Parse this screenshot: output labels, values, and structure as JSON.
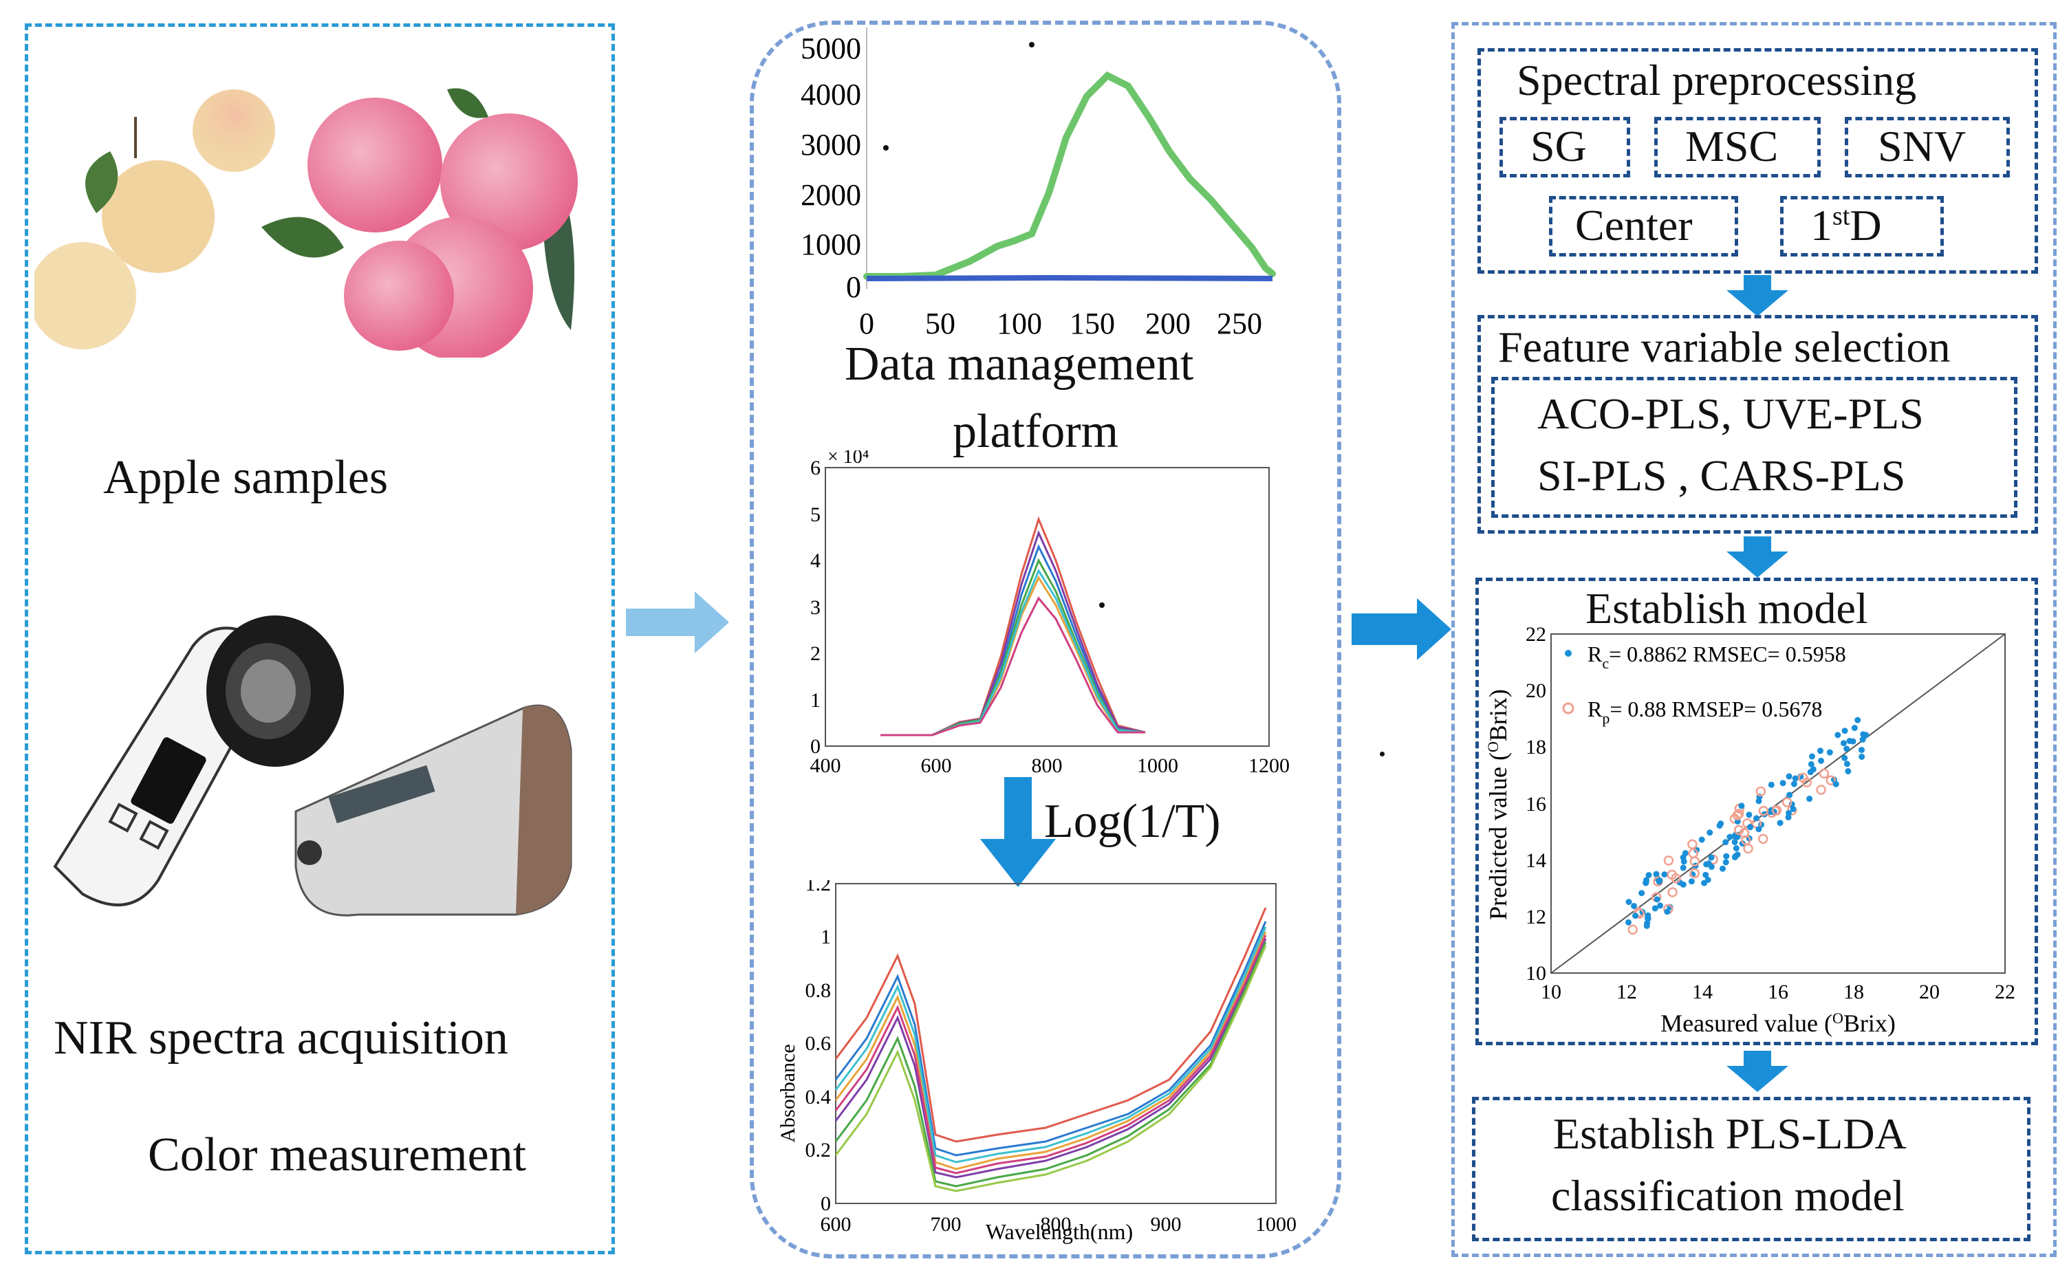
{
  "left": {
    "samples_label": "Apple samples",
    "nir_label": "NIR spectra acquisition",
    "color_label": "Color measurement"
  },
  "middle": {
    "platform_label_1": "Data management",
    "platform_label_2": "platform",
    "transform_label": "Log(1/T)",
    "chart1": {
      "type": "line",
      "x_ticks": [
        "0",
        "50",
        "100",
        "150",
        "200",
        "250"
      ],
      "y_ticks": [
        "0",
        "1000",
        "2000",
        "3000",
        "4000",
        "5000"
      ]
    },
    "chart2": {
      "type": "line",
      "exponent": "× 10⁴",
      "x_ticks": [
        "400",
        "600",
        "800",
        "1000",
        "1200"
      ],
      "y_ticks": [
        "0",
        "1",
        "2",
        "3",
        "4",
        "5",
        "6"
      ]
    },
    "chart3": {
      "type": "line",
      "xlabel": "Wavelength(nm)",
      "ylabel": "Absorbance",
      "x_ticks": [
        "600",
        "700",
        "800",
        "900",
        "1000"
      ],
      "y_ticks": [
        "0",
        "0.2",
        "0.4",
        "0.6",
        "0.8",
        "1",
        "1.2"
      ]
    }
  },
  "right": {
    "preproc_title": "Spectral preprocessing",
    "methods": [
      "SG",
      "MSC",
      "SNV",
      "Center"
    ],
    "first_derivative": {
      "base": "1",
      "sup": "st",
      "tail": "D"
    },
    "feature_title": "Feature variable selection",
    "feature_line1": "ACO-PLS, UVE-PLS",
    "feature_line2": "SI-PLS ,  CARS-PLS",
    "model_title": "Establish model",
    "classify_line1": "Establish PLS-LDA",
    "classify_line2": "classification model"
  },
  "scatter": {
    "legend_rc": {
      "letter": "R",
      "sub": "c",
      "rest": "= 0.8862 RMSEC= 0.5958"
    },
    "legend_rp": {
      "letter": "R",
      "sub": "p",
      "rest": "= 0.88 RMSEP= 0.5678"
    },
    "xlabel": {
      "pre": "Measured value (",
      "sup": "O",
      "post": "Brix)"
    },
    "ylabel": {
      "pre": "Predicted value (",
      "sup": "O",
      "post": "Brix)"
    },
    "x_ticks": [
      "10",
      "12",
      "14",
      "16",
      "18",
      "20",
      "22"
    ],
    "y_ticks": [
      "10",
      "12",
      "14",
      "16",
      "18",
      "20",
      "22"
    ]
  },
  "colors": {
    "blue_dash": "#2a9bd6",
    "navy_dash": "#1e4e8c",
    "arrow": "#1a8fd8",
    "green": "#6cc56a",
    "blue_line": "#3a5fc8"
  }
}
